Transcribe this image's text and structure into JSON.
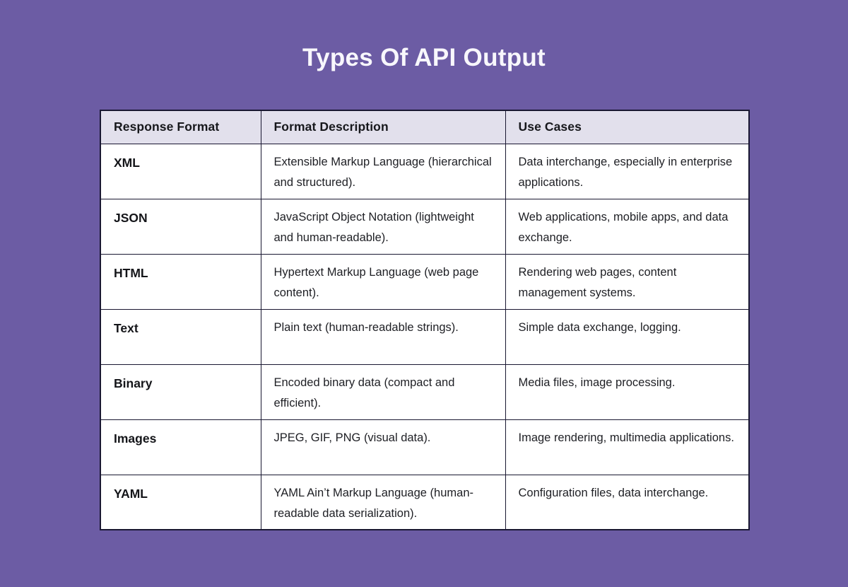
{
  "page": {
    "title": "Types Of API Output",
    "background_color": "#6c5ca4",
    "title_color": "#f8f7fc"
  },
  "table": {
    "header_bg": "#e2e0ec",
    "border_color": "#191731",
    "body_bg": "#ffffff",
    "columns": [
      "Response Format",
      "Format Description",
      "Use Cases"
    ],
    "rows": [
      {
        "format": "XML",
        "description": "Extensible Markup Language (hierarchical and structured).",
        "use_cases": "Data interchange, especially in enterprise applications."
      },
      {
        "format": "JSON",
        "description": "JavaScript Object Notation (lightweight and human-readable).",
        "use_cases": "Web applications, mobile apps, and data exchange."
      },
      {
        "format": "HTML",
        "description": "Hypertext Markup Language (web page content).",
        "use_cases": "Rendering web pages, content management systems."
      },
      {
        "format": "Text",
        "description": "Plain text (human-readable strings).",
        "use_cases": "Simple data exchange, logging."
      },
      {
        "format": "Binary",
        "description": "Encoded binary data (compact and efficient).",
        "use_cases": "Media files, image processing."
      },
      {
        "format": "Images",
        "description": "JPEG, GIF, PNG (visual data).",
        "use_cases": "Image rendering, multimedia applications."
      },
      {
        "format": "YAML",
        "description": "YAML Ain’t Markup Language (human-readable data serialization).",
        "use_cases": "Configuration files, data interchange."
      }
    ]
  },
  "chart_data": {
    "type": "table",
    "title": "Types Of API Output",
    "columns": [
      "Response Format",
      "Format Description",
      "Use Cases"
    ],
    "rows": [
      [
        "XML",
        "Extensible Markup Language (hierarchical and structured).",
        "Data interchange, especially in enterprise applications."
      ],
      [
        "JSON",
        "JavaScript Object Notation (lightweight and human-readable).",
        "Web applications, mobile apps, and data exchange."
      ],
      [
        "HTML",
        "Hypertext Markup Language (web page content).",
        "Rendering web pages, content management systems."
      ],
      [
        "Text",
        "Plain text (human-readable strings).",
        "Simple data exchange, logging."
      ],
      [
        "Binary",
        "Encoded binary data (compact and efficient).",
        "Media files, image processing."
      ],
      [
        "Images",
        "JPEG, GIF, PNG (visual data).",
        "Image rendering, multimedia applications."
      ],
      [
        "YAML",
        "YAML Ain’t Markup Language (human-readable data serialization).",
        "Configuration files, data interchange."
      ]
    ]
  }
}
